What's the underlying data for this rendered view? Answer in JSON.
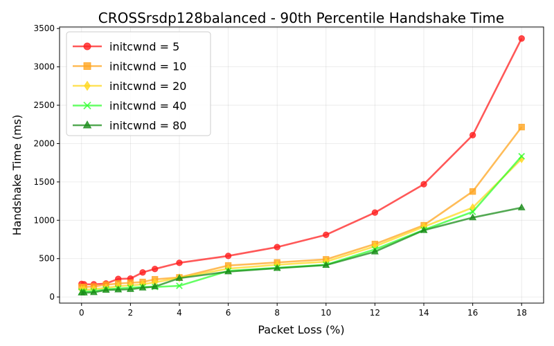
{
  "chart_data": {
    "type": "line",
    "title": "CROSSrsdp128balanced - 90th Percentile Handshake Time",
    "xlabel": "Packet Loss (%)",
    "ylabel": "Handshake Time (ms)",
    "xlim": [
      -0.9,
      18.9
    ],
    "ylim": [
      -80,
      3520
    ],
    "xticks": [
      0,
      2,
      4,
      6,
      8,
      10,
      12,
      14,
      16,
      18
    ],
    "yticks": [
      0,
      500,
      1000,
      1500,
      2000,
      2500,
      3000,
      3500
    ],
    "grid": true,
    "legend_position": "top-left",
    "x": [
      0,
      0.1,
      0.5,
      1,
      1.5,
      2,
      2.5,
      3,
      4,
      6,
      8,
      10,
      12,
      14,
      16,
      18
    ],
    "series": [
      {
        "name": "initcwnd = 5",
        "color": "#ff2020",
        "marker": "circle",
        "values": [
          170,
          165,
          165,
          175,
          235,
          240,
          320,
          365,
          445,
          535,
          650,
          810,
          1100,
          1470,
          2110,
          3370
        ]
      },
      {
        "name": "initcwnd = 10",
        "color": "#ffa520",
        "marker": "square",
        "values": [
          130,
          130,
          135,
          160,
          175,
          185,
          195,
          230,
          255,
          410,
          450,
          490,
          690,
          935,
          1375,
          2215
        ]
      },
      {
        "name": "initcwnd = 20",
        "color": "#ffd820",
        "marker": "diamond",
        "values": [
          95,
          95,
          100,
          120,
          140,
          150,
          165,
          190,
          250,
          370,
          420,
          460,
          660,
          915,
          1165,
          1800
        ]
      },
      {
        "name": "initcwnd = 40",
        "color": "#30ff30",
        "marker": "x",
        "values": [
          70,
          70,
          75,
          100,
          110,
          120,
          130,
          130,
          145,
          340,
          380,
          420,
          620,
          875,
          1110,
          1835
        ]
      },
      {
        "name": "initcwnd = 80",
        "color": "#1a8c1a",
        "marker": "triangle",
        "values": [
          55,
          55,
          60,
          90,
          95,
          100,
          120,
          135,
          245,
          330,
          375,
          415,
          590,
          870,
          1035,
          1165
        ]
      }
    ]
  }
}
